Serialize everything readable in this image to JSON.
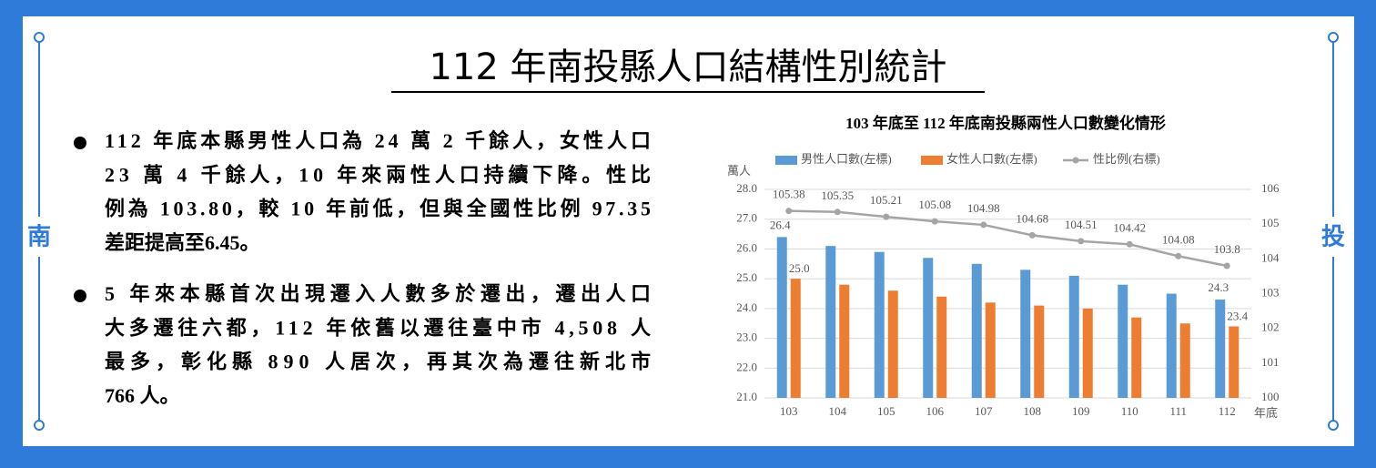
{
  "header": {
    "title": "112 年南投縣人口結構性別統計"
  },
  "side": {
    "left": "南",
    "right": "投"
  },
  "bullets": [
    {
      "lines": [
        "112 年底本縣男性人口為 24 萬 2 千餘人，女性人口",
        "23 萬 4 千餘人，10 年來兩性人口持續下降。性比",
        "例為 103.80，較 10 年前低，但與全國性比例 97.35",
        "差距提高至6.45。"
      ]
    },
    {
      "lines": [
        "5 年來本縣首次出現遷入人數多於遷出，遷出人口",
        "大多遷往六都，112 年依舊以遷往臺中市 4,508 人",
        "最多，彰化縣 890 人居次，再其次為遷往新北市",
        "766 人。"
      ]
    }
  ],
  "chart_data": {
    "type": "bar",
    "title": "103 年底至 112 年底南投縣兩性人口數變化情形",
    "y_label": "萬人",
    "x_label": "年底",
    "categories": [
      "103",
      "104",
      "105",
      "106",
      "107",
      "108",
      "109",
      "110",
      "111",
      "112"
    ],
    "series": [
      {
        "name": "男性人口數(左標)",
        "color": "#5b9bd5",
        "values": [
          26.4,
          26.1,
          25.9,
          25.7,
          25.5,
          25.3,
          25.1,
          24.8,
          24.5,
          24.3
        ],
        "value_labels": [
          "26.4",
          null,
          null,
          null,
          null,
          null,
          null,
          null,
          null,
          "24.3"
        ]
      },
      {
        "name": "女性人口數(左標)",
        "color": "#ed7d31",
        "values": [
          25.0,
          24.8,
          24.6,
          24.4,
          24.2,
          24.1,
          24.0,
          23.7,
          23.5,
          23.4
        ],
        "value_labels": [
          "25.0",
          null,
          null,
          null,
          null,
          null,
          null,
          null,
          null,
          "23.4"
        ]
      },
      {
        "name": "性比例(右標)",
        "type": "line",
        "axis": "y2",
        "color": "#a5a5a5",
        "values": [
          105.38,
          105.35,
          105.21,
          105.08,
          104.98,
          104.68,
          104.51,
          104.42,
          104.08,
          103.8
        ]
      }
    ],
    "ylim": [
      21,
      28
    ],
    "yticks": [
      {
        "value": 21,
        "label": "21.0"
      },
      {
        "value": 22,
        "label": "22.0"
      },
      {
        "value": 23,
        "label": "23.0"
      },
      {
        "value": 24,
        "label": "24.0"
      },
      {
        "value": 25,
        "label": "25.0"
      },
      {
        "value": 26,
        "label": "26.0"
      },
      {
        "value": 27,
        "label": "27.0"
      },
      {
        "value": 28,
        "label": "28.0"
      }
    ],
    "y2lim": [
      100,
      106
    ],
    "y2ticks": [
      100,
      101,
      102,
      103,
      104,
      105,
      106
    ],
    "grid": true,
    "legend": "top"
  }
}
